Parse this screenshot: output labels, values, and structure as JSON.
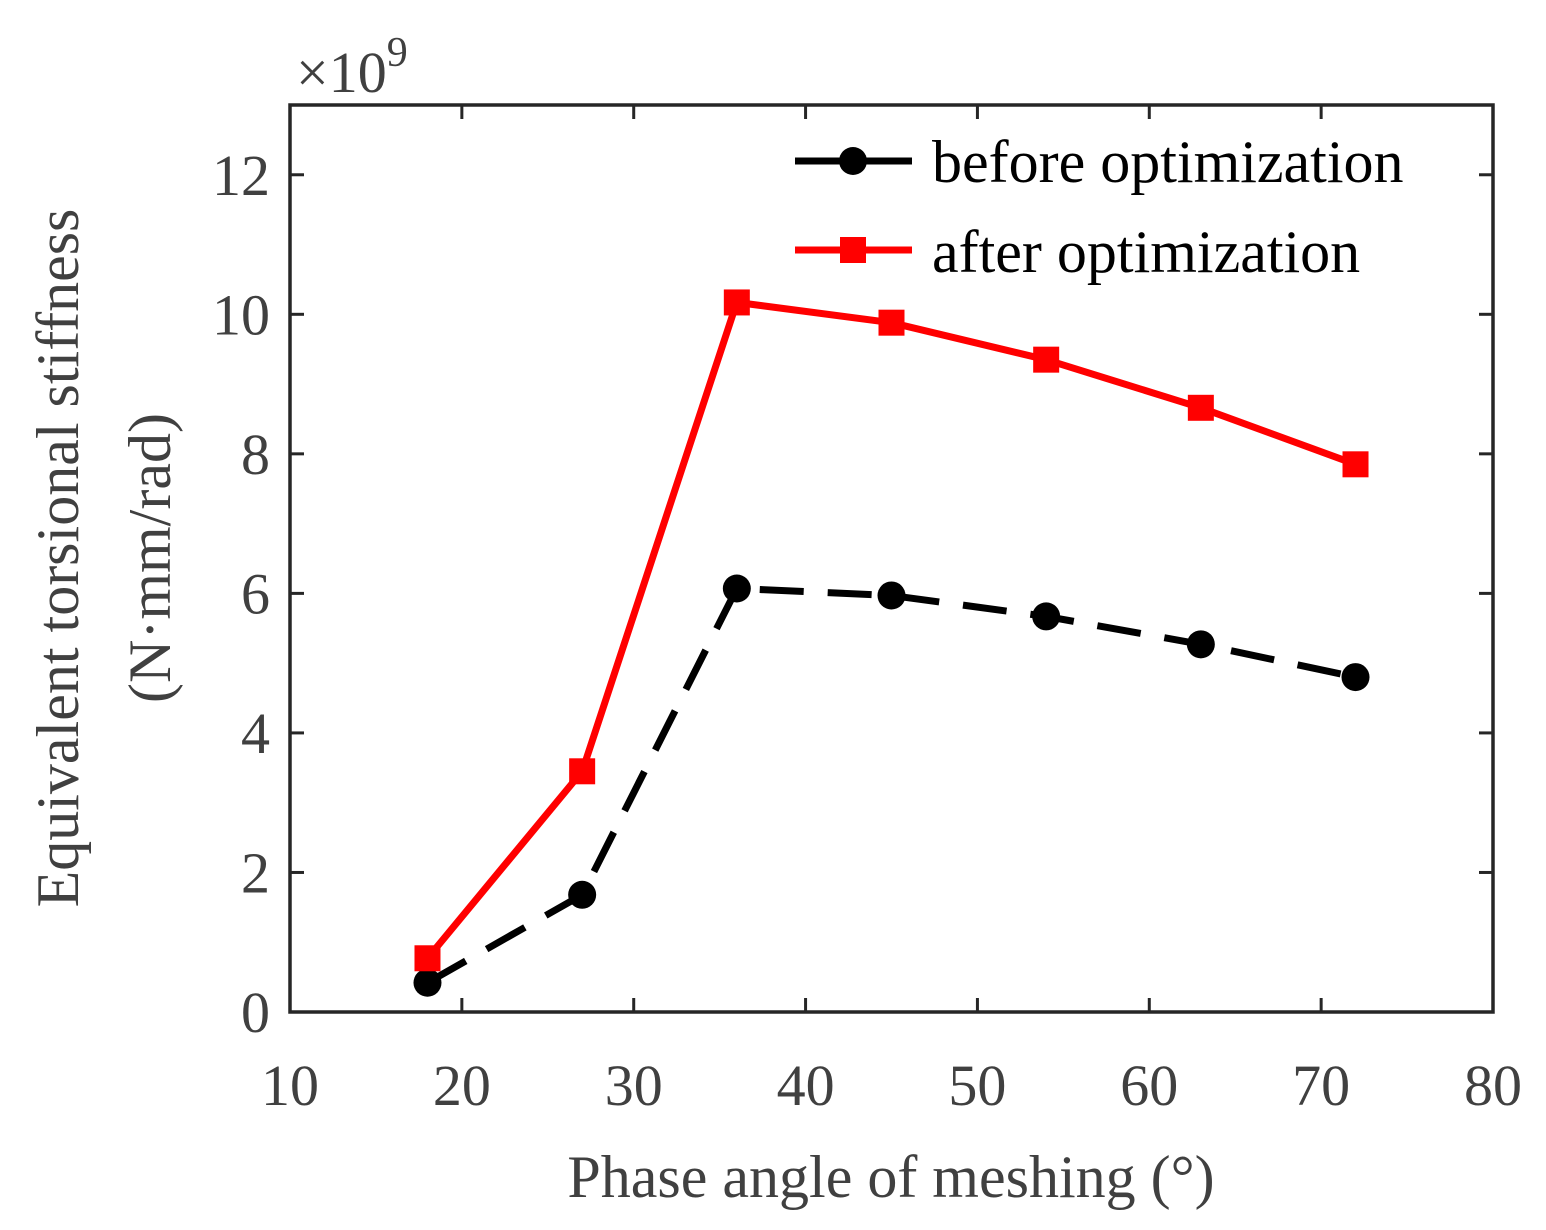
{
  "chart_data": {
    "type": "line",
    "xlabel": "Phase angle of meshing (°)",
    "ylabel_lines": [
      "Equivalent torsional stiffness",
      "(N·mm/rad)"
    ],
    "y_multiplier": {
      "base": "×10",
      "exponent": "9"
    },
    "xlim": [
      10,
      80
    ],
    "ylim": [
      0,
      13
    ],
    "x_ticks": [
      10,
      20,
      30,
      40,
      50,
      60,
      70,
      80
    ],
    "y_ticks": [
      0,
      2,
      4,
      6,
      8,
      10,
      12
    ],
    "x_tick_labels": [
      "10",
      "20",
      "30",
      "40",
      "50",
      "60",
      "70",
      "80"
    ],
    "y_tick_labels": [
      "0",
      "2",
      "4",
      "6",
      "8",
      "10",
      "12"
    ],
    "grid": false,
    "legend_position": "top-right",
    "x": [
      18,
      27,
      36,
      45,
      54,
      63,
      72
    ],
    "series": [
      {
        "name": "before optimization",
        "values": [
          0.42,
          1.68,
          6.07,
          5.97,
          5.67,
          5.27,
          4.8
        ],
        "color": "#000000",
        "line_style": "dashed",
        "marker": "circle"
      },
      {
        "name": "after optimization",
        "values": [
          0.77,
          3.45,
          10.17,
          9.88,
          9.35,
          8.66,
          7.85
        ],
        "color": "#ff0000",
        "line_style": "solid",
        "marker": "square"
      }
    ]
  }
}
